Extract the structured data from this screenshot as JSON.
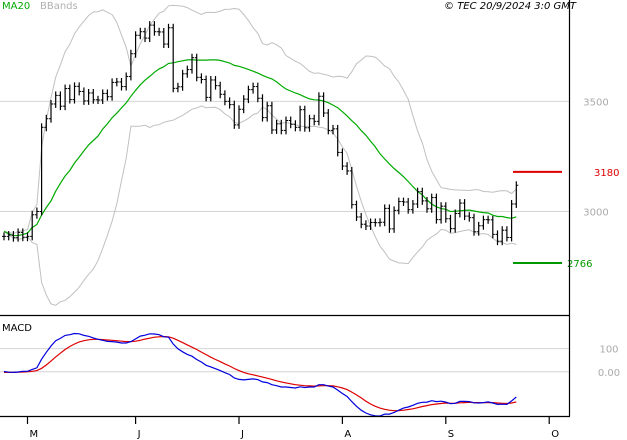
{
  "chart_data": [
    {
      "type": "ohlc",
      "header": {
        "ma_label": "MA20",
        "bb_label": "BBands",
        "timestamp": "© TEC 20/9/2024 3:0 GMT"
      },
      "y_ticks": [
        {
          "value": 3000,
          "label": "3000"
        },
        {
          "value": 3500,
          "label": "3500"
        }
      ],
      "ylim": [
        2530,
        3960
      ],
      "months": [
        {
          "label": "M",
          "index": 5
        },
        {
          "label": "J",
          "index": 28
        },
        {
          "label": "J",
          "index": 50
        },
        {
          "label": "A",
          "index": 72
        },
        {
          "label": "S",
          "index": 94
        },
        {
          "label": "O",
          "index": 116
        }
      ],
      "closes": [
        2887,
        2893,
        2881,
        2905,
        2883,
        2887,
        2985,
        3000,
        3382,
        3421,
        3488,
        3527,
        3478,
        3558,
        3508,
        3568,
        3545,
        3502,
        3538,
        3507,
        3506,
        3536,
        3521,
        3586,
        3588,
        3567,
        3613,
        3716,
        3800,
        3816,
        3787,
        3846,
        3816,
        3815,
        3760,
        3834,
        3559,
        3566,
        3625,
        3644,
        3698,
        3609,
        3599,
        3518,
        3597,
        3571,
        3532,
        3500,
        3485,
        3393,
        3464,
        3510,
        3553,
        3567,
        3514,
        3426,
        3480,
        3370,
        3398,
        3368,
        3413,
        3396,
        3382,
        3462,
        3380,
        3421,
        3409,
        3523,
        3447,
        3368,
        3375,
        3268,
        3206,
        3184,
        3031,
        2975,
        2942,
        2934,
        2950,
        2949,
        2951,
        3014,
        2921,
        3005,
        3045,
        3043,
        3008,
        3034,
        3090,
        3048,
        3012,
        3063,
        2963,
        3024,
        2967,
        2922,
        2991,
        3038,
        2979,
        2972,
        2908,
        2935,
        2963,
        2962,
        2896,
        2865,
        2915,
        2882,
        3034,
        3119
      ],
      "ma20": [
        2910,
        2899,
        2890,
        2891,
        2895,
        2902,
        2927,
        2941,
        2984,
        3018,
        3048,
        3092,
        3128,
        3161,
        3186,
        3220,
        3247,
        3275,
        3302,
        3322,
        3342,
        3374,
        3398,
        3425,
        3446,
        3470,
        3493,
        3523,
        3550,
        3575,
        3596,
        3613,
        3632,
        3647,
        3657,
        3672,
        3675,
        3680,
        3684,
        3688,
        3689,
        3687,
        3687,
        3687,
        3688,
        3688,
        3686,
        3680,
        3674,
        3663,
        3659,
        3652,
        3645,
        3637,
        3628,
        3618,
        3609,
        3602,
        3588,
        3571,
        3556,
        3547,
        3538,
        3530,
        3520,
        3511,
        3507,
        3506,
        3501,
        3494,
        3483,
        3471,
        3453,
        3434,
        3412,
        3393,
        3367,
        3346,
        3319,
        3293,
        3262,
        3238,
        3216,
        3195,
        3177,
        3158,
        3136,
        3113,
        3091,
        3075,
        3052,
        3034,
        3021,
        3013,
        3010,
        3000,
        3001,
        3003,
        3005,
        3006,
        3002,
        2998,
        2995,
        2993,
        2983,
        2977,
        2977,
        2972,
        2969,
        2976
      ]
    },
    {
      "type": "line",
      "title": "MACD",
      "y_ticks": [
        {
          "value": 0,
          "label": "0.00"
        },
        {
          "value": 100,
          "label": "100"
        }
      ],
      "ylim": [
        -191,
        245
      ],
      "series": [
        {
          "values": [
            1,
            -2,
            -3,
            -1,
            2,
            2,
            10,
            17,
            54,
            84,
            111,
            134,
            144,
            157,
            160,
            165,
            164,
            157,
            153,
            146,
            140,
            136,
            131,
            130,
            128,
            124,
            124,
            130,
            142,
            154,
            158,
            164,
            163,
            160,
            151,
            149,
            120,
            99,
            86,
            75,
            67,
            53,
            42,
            28,
            21,
            13,
            5,
            -4,
            -12,
            -27,
            -33,
            -35,
            -33,
            -31,
            -34,
            -44,
            -47,
            -56,
            -60,
            -66,
            -66,
            -68,
            -70,
            -65,
            -68,
            -66,
            -66,
            -56,
            -56,
            -62,
            -66,
            -79,
            -94,
            -107,
            -129,
            -149,
            -166,
            -178,
            -186,
            -190,
            -191,
            -183,
            -183,
            -176,
            -166,
            -157,
            -152,
            -145,
            -136,
            -132,
            -131,
            -125,
            -129,
            -127,
            -131,
            -138,
            -136,
            -128,
            -128,
            -129,
            -134,
            -135,
            -133,
            -130,
            -135,
            -141,
            -140,
            -141,
            -126,
            -109
          ]
        },
        {
          "values": [
            -3,
            -3,
            -3,
            -2,
            -1,
            0,
            2,
            5,
            15,
            29,
            46,
            64,
            80,
            96,
            109,
            120,
            129,
            134,
            138,
            140,
            140,
            139,
            137,
            136,
            134,
            132,
            130,
            130,
            132,
            136,
            141,
            145,
            149,
            151,
            152,
            151,
            145,
            136,
            126,
            116,
            106,
            96,
            85,
            74,
            63,
            53,
            44,
            34,
            25,
            14,
            5,
            -3,
            -9,
            -13,
            -18,
            -23,
            -28,
            -33,
            -39,
            -44,
            -48,
            -52,
            -56,
            -58,
            -60,
            -61,
            -62,
            -61,
            -60,
            -60,
            -61,
            -65,
            -70,
            -77,
            -88,
            -100,
            -113,
            -127,
            -139,
            -149,
            -157,
            -162,
            -166,
            -168,
            -168,
            -166,
            -163,
            -160,
            -155,
            -150,
            -146,
            -142,
            -139,
            -137,
            -135,
            -136,
            -136,
            -134,
            -133,
            -132,
            -133,
            -133,
            -133,
            -133,
            -133,
            -135,
            -136,
            -137,
            -135,
            -130
          ]
        }
      ]
    }
  ],
  "levels": {
    "resistance": {
      "value": 3180,
      "label": "3180",
      "color": "#dd0000"
    },
    "support": {
      "value": 2766,
      "label": "2766",
      "color": "#009900"
    }
  },
  "colors": {
    "price": "#000000",
    "ma": "#00aa00",
    "bands": "#c0c0c0",
    "macd": "#0000dd",
    "signal": "#dd0000",
    "grid": "#d4d4d4"
  }
}
